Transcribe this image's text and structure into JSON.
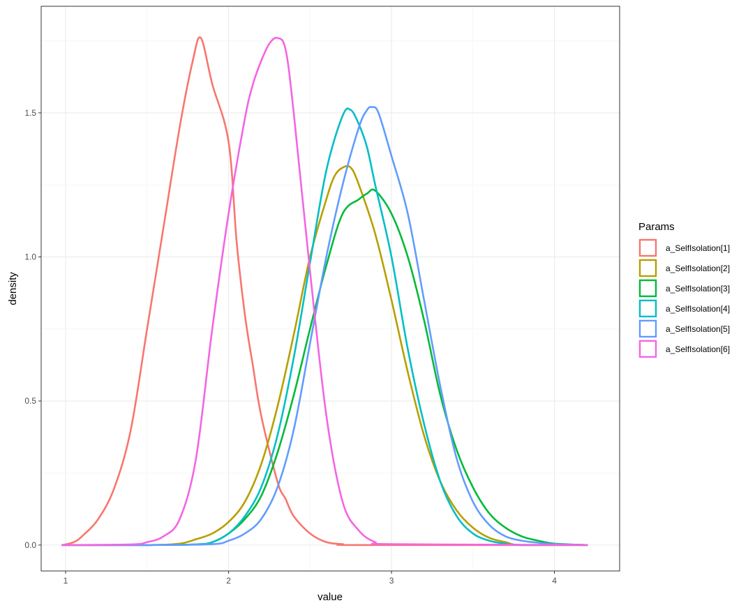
{
  "chart_data": {
    "type": "line",
    "title": "",
    "xlabel": "value",
    "ylabel": "density",
    "xlim": [
      0.85,
      4.4
    ],
    "ylim": [
      -0.09,
      1.87
    ],
    "x_ticks": [
      1,
      2,
      3,
      4
    ],
    "x_tick_labels": [
      "1",
      "2",
      "3",
      "4"
    ],
    "y_ticks": [
      0,
      0.5,
      1,
      1.5
    ],
    "y_tick_labels": [
      "0.0",
      "0.5",
      "1.0",
      "1.5"
    ],
    "grid": true,
    "legend_title": "Params",
    "legend_position": "right",
    "series": [
      {
        "name": "a_SelfIsolation[1]",
        "color": "#F8766D",
        "x": [
          0.98,
          1.05,
          1.1,
          1.2,
          1.3,
          1.4,
          1.5,
          1.6,
          1.7,
          1.78,
          1.83,
          1.9,
          2.0,
          2.05,
          2.1,
          2.15,
          2.2,
          2.3,
          2.35,
          2.4,
          2.5,
          2.6,
          2.7,
          2.8,
          4.2
        ],
        "y": [
          0.0,
          0.01,
          0.03,
          0.09,
          0.2,
          0.4,
          0.75,
          1.1,
          1.45,
          1.68,
          1.76,
          1.6,
          1.4,
          1.05,
          0.8,
          0.62,
          0.45,
          0.22,
          0.16,
          0.1,
          0.04,
          0.01,
          0.003,
          0.0,
          0.0
        ]
      },
      {
        "name": "a_SelfIsolation[2]",
        "color": "#B79F00",
        "x": [
          0.98,
          1.5,
          1.7,
          1.8,
          1.9,
          2.0,
          2.1,
          2.2,
          2.3,
          2.4,
          2.5,
          2.6,
          2.65,
          2.7,
          2.75,
          2.8,
          2.9,
          3.0,
          3.1,
          3.2,
          3.3,
          3.4,
          3.5,
          3.6,
          3.7,
          3.8,
          4.2
        ],
        "y": [
          0.0,
          0.0,
          0.005,
          0.02,
          0.04,
          0.08,
          0.15,
          0.28,
          0.48,
          0.73,
          1.0,
          1.2,
          1.28,
          1.31,
          1.31,
          1.25,
          1.08,
          0.85,
          0.6,
          0.38,
          0.22,
          0.12,
          0.06,
          0.025,
          0.01,
          0.0,
          0.0
        ]
      },
      {
        "name": "a_SelfIsolation[3]",
        "color": "#00BA38",
        "x": [
          0.98,
          1.5,
          1.8,
          1.9,
          2.0,
          2.1,
          2.2,
          2.3,
          2.4,
          2.5,
          2.6,
          2.7,
          2.8,
          2.85,
          2.9,
          3.0,
          3.1,
          3.2,
          3.3,
          3.4,
          3.5,
          3.6,
          3.7,
          3.8,
          3.9,
          4.0,
          4.2
        ],
        "y": [
          0.0,
          0.0,
          0.002,
          0.01,
          0.04,
          0.09,
          0.17,
          0.32,
          0.52,
          0.75,
          0.97,
          1.15,
          1.2,
          1.22,
          1.23,
          1.15,
          1.0,
          0.78,
          0.52,
          0.33,
          0.2,
          0.11,
          0.06,
          0.03,
          0.015,
          0.005,
          0.0
        ]
      },
      {
        "name": "a_SelfIsolation[4]",
        "color": "#00BFC4",
        "x": [
          0.98,
          1.5,
          1.8,
          1.9,
          2.0,
          2.1,
          2.2,
          2.3,
          2.4,
          2.5,
          2.6,
          2.7,
          2.75,
          2.8,
          2.85,
          2.9,
          3.0,
          3.1,
          3.2,
          3.3,
          3.4,
          3.5,
          3.6,
          3.7,
          3.8,
          4.2
        ],
        "y": [
          0.0,
          0.0,
          0.002,
          0.01,
          0.04,
          0.1,
          0.2,
          0.38,
          0.65,
          0.98,
          1.3,
          1.49,
          1.51,
          1.46,
          1.38,
          1.25,
          1.0,
          0.68,
          0.42,
          0.22,
          0.1,
          0.04,
          0.015,
          0.005,
          0.0,
          0.0
        ]
      },
      {
        "name": "a_SelfIsolation[5]",
        "color": "#619CFF",
        "x": [
          0.98,
          1.5,
          1.9,
          2.0,
          2.1,
          2.2,
          2.3,
          2.4,
          2.5,
          2.6,
          2.7,
          2.8,
          2.85,
          2.88,
          2.92,
          3.0,
          3.1,
          3.2,
          3.3,
          3.4,
          3.5,
          3.6,
          3.7,
          3.8,
          3.9,
          4.0,
          4.2
        ],
        "y": [
          0.0,
          0.0,
          0.003,
          0.015,
          0.04,
          0.09,
          0.2,
          0.4,
          0.7,
          1.0,
          1.25,
          1.45,
          1.51,
          1.52,
          1.5,
          1.35,
          1.15,
          0.85,
          0.55,
          0.3,
          0.15,
          0.07,
          0.03,
          0.015,
          0.008,
          0.003,
          0.0
        ]
      },
      {
        "name": "a_SelfIsolation[6]",
        "color": "#F564E3",
        "x": [
          0.98,
          1.4,
          1.5,
          1.6,
          1.7,
          1.8,
          1.9,
          2.0,
          2.1,
          2.15,
          2.2,
          2.25,
          2.3,
          2.35,
          2.4,
          2.5,
          2.6,
          2.7,
          2.8,
          2.9,
          3.0,
          4.2
        ],
        "y": [
          0.0,
          0.002,
          0.01,
          0.03,
          0.09,
          0.3,
          0.75,
          1.15,
          1.48,
          1.6,
          1.68,
          1.74,
          1.76,
          1.72,
          1.5,
          0.95,
          0.45,
          0.15,
          0.05,
          0.01,
          0.003,
          0.0
        ]
      }
    ]
  }
}
